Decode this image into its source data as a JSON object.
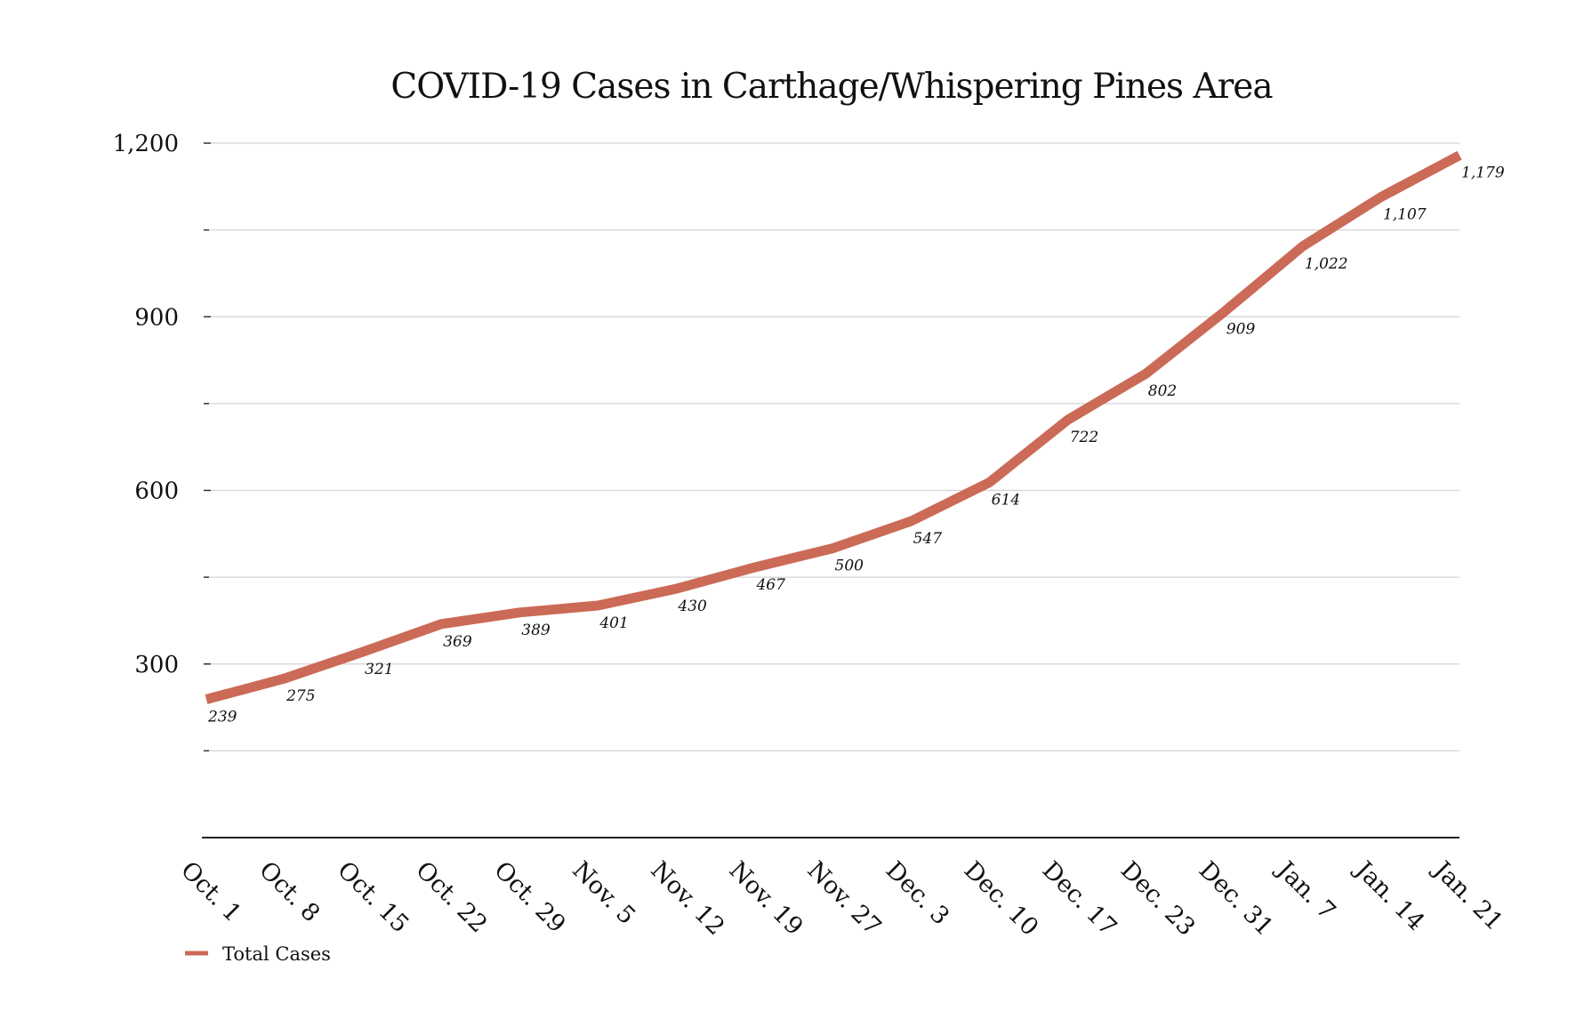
{
  "chart_data": {
    "type": "line",
    "title": "COVID-19 Cases in Carthage/Whispering Pines Area",
    "xlabel": "",
    "ylabel": "",
    "categories": [
      "Oct. 1",
      "Oct. 8",
      "Oct. 15",
      "Oct. 22",
      "Oct. 29",
      "Nov. 5",
      "Nov. 12",
      "Nov. 19",
      "Nov. 27",
      "Dec. 3",
      "Dec. 10",
      "Dec. 17",
      "Dec. 23",
      "Dec. 31",
      "Jan. 7",
      "Jan. 14",
      "Jan. 21"
    ],
    "series": [
      {
        "name": "Total Cases",
        "color": "#cb6a56",
        "values": [
          239,
          275,
          321,
          369,
          389,
          401,
          430,
          467,
          500,
          547,
          614,
          722,
          802,
          909,
          1022,
          1107,
          1179
        ],
        "data_labels": [
          "239",
          "275",
          "321",
          "369",
          "389",
          "401",
          "430",
          "467",
          "500",
          "547",
          "614",
          "722",
          "802",
          "909",
          "1,022",
          "1,107",
          "1,179"
        ]
      }
    ],
    "ylim": [
      0,
      1200
    ],
    "y_ticks": [
      300,
      600,
      900,
      1200
    ],
    "y_tick_labels": [
      "300",
      "600",
      "900",
      "1,200"
    ],
    "y_minor_ticks": [
      150,
      450,
      750,
      1050
    ],
    "grid": true,
    "legend_position": "bottom-left"
  }
}
